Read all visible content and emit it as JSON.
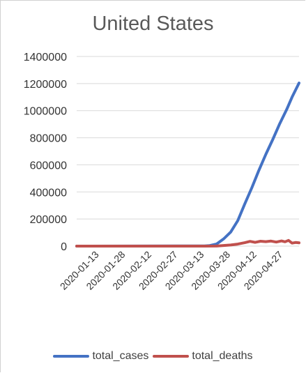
{
  "chart_data": {
    "type": "line",
    "title": "United States",
    "xlabel": "",
    "ylabel": "",
    "ylim": [
      0,
      1400000
    ],
    "y_ticks": [
      "0",
      "200000",
      "400000",
      "600000",
      "800000",
      "1000000",
      "1200000",
      "1400000"
    ],
    "y_tick_values": [
      0,
      200000,
      400000,
      600000,
      800000,
      1000000,
      1200000,
      1400000
    ],
    "x_range": [
      "2019-12-31",
      "2020-05-06"
    ],
    "x_ticks": [
      "2020-01-13",
      "2020-01-28",
      "2020-02-12",
      "2020-02-27",
      "2020-03-13",
      "2020-03-28",
      "2020-04-12",
      "2020-04-27"
    ],
    "grid": true,
    "legend_position": "bottom",
    "series": [
      {
        "name": "total_cases",
        "color": "#4472c4",
        "points": [
          [
            "2019-12-31",
            0
          ],
          [
            "2020-03-13",
            1600
          ],
          [
            "2020-03-16",
            4000
          ],
          [
            "2020-03-20",
            16000
          ],
          [
            "2020-03-24",
            54000
          ],
          [
            "2020-03-28",
            104000
          ],
          [
            "2020-04-01",
            188000
          ],
          [
            "2020-04-05",
            311000
          ],
          [
            "2020-04-09",
            430000
          ],
          [
            "2020-04-13",
            557000
          ],
          [
            "2020-04-17",
            677000
          ],
          [
            "2020-04-21",
            787000
          ],
          [
            "2020-04-25",
            905000
          ],
          [
            "2020-04-29",
            1010000
          ],
          [
            "2020-05-02",
            1100000
          ],
          [
            "2020-05-06",
            1204000
          ]
        ]
      },
      {
        "name": "total_deaths",
        "color": "#c0504d",
        "points": [
          [
            "2019-12-31",
            0
          ],
          [
            "2020-03-13",
            50
          ],
          [
            "2020-03-20",
            700
          ],
          [
            "2020-03-28",
            8000
          ],
          [
            "2020-04-01",
            15000
          ],
          [
            "2020-04-05",
            25000
          ],
          [
            "2020-04-08",
            35000
          ],
          [
            "2020-04-11",
            28000
          ],
          [
            "2020-04-14",
            36000
          ],
          [
            "2020-04-17",
            33000
          ],
          [
            "2020-04-20",
            37000
          ],
          [
            "2020-04-23",
            30000
          ],
          [
            "2020-04-26",
            38000
          ],
          [
            "2020-04-28",
            32000
          ],
          [
            "2020-04-30",
            42000
          ],
          [
            "2020-05-02",
            22000
          ],
          [
            "2020-05-04",
            27000
          ],
          [
            "2020-05-06",
            24000
          ]
        ]
      }
    ]
  }
}
